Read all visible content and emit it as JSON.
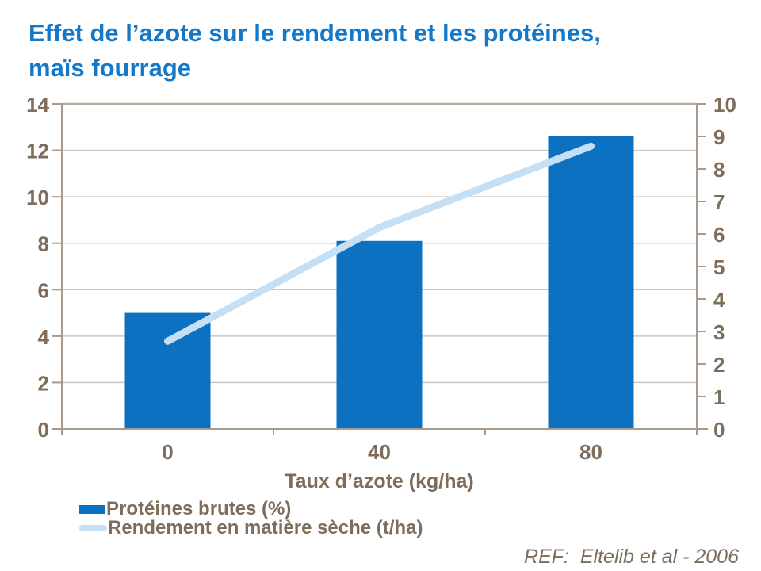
{
  "chart_data": {
    "type": "combo",
    "title": "Effet de l’azote sur le rendement et les protéines,\nmaïs fourrage",
    "categories": [
      "0",
      "40",
      "80"
    ],
    "series": [
      {
        "name": "Protéines brutes (%)",
        "type": "bar",
        "axis": "left",
        "color": "#0b71c0",
        "values": [
          5.0,
          8.1,
          12.6
        ]
      },
      {
        "name": "Rendement en matière sèche (t/ha)",
        "type": "line",
        "axis": "right",
        "color": "#c5dff4",
        "values": [
          2.7,
          6.2,
          8.7
        ]
      }
    ],
    "xlabel": "Taux d’azote (kg/ha)",
    "axes": {
      "left": {
        "min": 0,
        "max": 14,
        "step": 2
      },
      "right": {
        "min": 0,
        "max": 10,
        "step": 1
      }
    },
    "grid": true,
    "legend_position": "bottom-left"
  },
  "reference": "REF:  Eltelib et al - 2006",
  "colors": {
    "title": "#1478c8",
    "text": "#7e6d5a",
    "axis": "#a89b8d",
    "grid": "#cfc6bb",
    "top_border": "#b5aa9d",
    "background": "#ffffff"
  }
}
